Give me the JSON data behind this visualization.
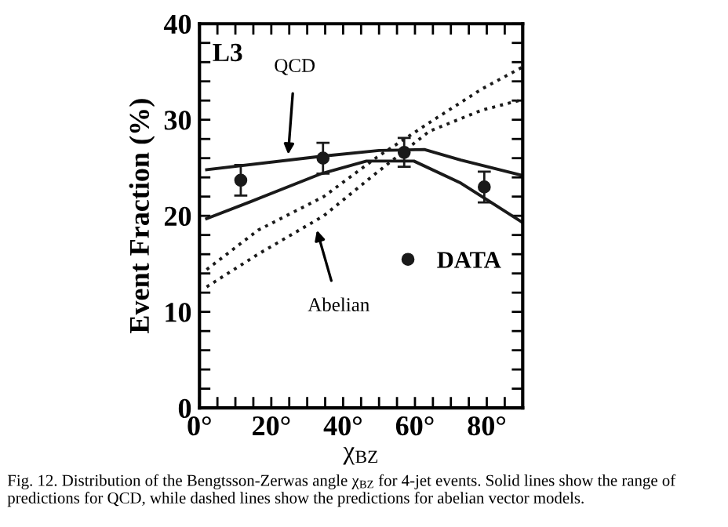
{
  "chart_data": {
    "type": "line",
    "xlabel": "χ$_{BZ}$",
    "ylabel": "Event Fraction (%)",
    "xlim": [
      0,
      90
    ],
    "ylim": [
      0,
      40
    ],
    "xticks": [
      {
        "value": 0,
        "label": "0°"
      },
      {
        "value": 5,
        "label": null
      },
      {
        "value": 10,
        "label": null
      },
      {
        "value": 15,
        "label": null
      },
      {
        "value": 20,
        "label": "20°"
      },
      {
        "value": 25,
        "label": null
      },
      {
        "value": 30,
        "label": null
      },
      {
        "value": 35,
        "label": null
      },
      {
        "value": 40,
        "label": "40°"
      },
      {
        "value": 45,
        "label": null
      },
      {
        "value": 50,
        "label": null
      },
      {
        "value": 55,
        "label": null
      },
      {
        "value": 60,
        "label": "60°"
      },
      {
        "value": 65,
        "label": null
      },
      {
        "value": 70,
        "label": null
      },
      {
        "value": 75,
        "label": null
      },
      {
        "value": 80,
        "label": "80°"
      },
      {
        "value": 85,
        "label": null
      },
      {
        "value": 90,
        "label": null
      }
    ],
    "yticks": [
      0,
      {
        "value": 2,
        "label": null
      },
      {
        "value": 4,
        "label": null
      },
      {
        "value": 6,
        "label": null
      },
      {
        "value": 8,
        "label": null
      },
      10,
      {
        "value": 12,
        "label": null
      },
      {
        "value": 14,
        "label": null
      },
      {
        "value": 16,
        "label": null
      },
      {
        "value": 18,
        "label": null
      },
      20,
      {
        "value": 22,
        "label": null
      },
      {
        "value": 24,
        "label": null
      },
      {
        "value": 26,
        "label": null
      },
      {
        "value": 28,
        "label": null
      },
      30,
      {
        "value": 32,
        "label": null
      },
      {
        "value": 34,
        "label": null
      },
      {
        "value": 36,
        "label": null
      },
      {
        "value": 38,
        "label": null
      },
      40
    ],
    "grid": false,
    "legend": "right",
    "series": [
      {
        "color": "#1a1a1a",
        "line_style": "solid",
        "marker": "none",
        "x": [
          2,
          34,
          50,
          62.6,
          72.8,
          90
        ],
        "values": [
          24.8,
          26.2,
          26.8,
          26.9,
          25.8,
          24.2
        ]
      },
      {
        "color": "#1a1a1a",
        "line_style": "solid",
        "marker": "none",
        "x": [
          2,
          14.4,
          34,
          46.5,
          59.7,
          72.8,
          90
        ],
        "values": [
          19.7,
          21.5,
          24.4,
          25.7,
          25.7,
          23.4,
          19.3
        ]
      },
      {
        "color": "#1a1a1a",
        "line_style": "dotted",
        "marker": "none",
        "x": [
          2,
          16.3,
          34.6,
          49.4,
          64,
          78.6,
          90
        ],
        "values": [
          14.4,
          18.5,
          22.0,
          26.1,
          29.7,
          33.2,
          35.5
        ]
      },
      {
        "color": "#1a1a1a",
        "line_style": "dotted",
        "marker": "none",
        "x": [
          2,
          16.3,
          34.6,
          49.4,
          64,
          78.6,
          90
        ],
        "values": [
          12.6,
          16.0,
          20.0,
          24.5,
          28.8,
          31.0,
          32.1
        ]
      },
      {
        "type": "scatter",
        "name": "DATA",
        "color": "#1a1a1a",
        "marker": "circle",
        "x": [
          11.5,
          34.4,
          57,
          79.3
        ],
        "values": [
          23.7,
          26.0,
          26.6,
          23.0
        ],
        "errors": [
          1.6,
          1.6,
          1.5,
          1.6
        ]
      }
    ],
    "annotations": [
      "L3",
      {
        "text": "QCD",
        "x": 24.7,
        "y": 26.4
      },
      {
        "text": "Abelian",
        "x": 32.7,
        "y": 18.5
      },
      "Fig. 12. Distribution of the Bengtsson-Zerwas angle χ$_{BZ}$ for 4-jet events. Solid lines show the range of predictions for QCD, while dashed lines show the predictions for abelian vector models."
    ]
  }
}
